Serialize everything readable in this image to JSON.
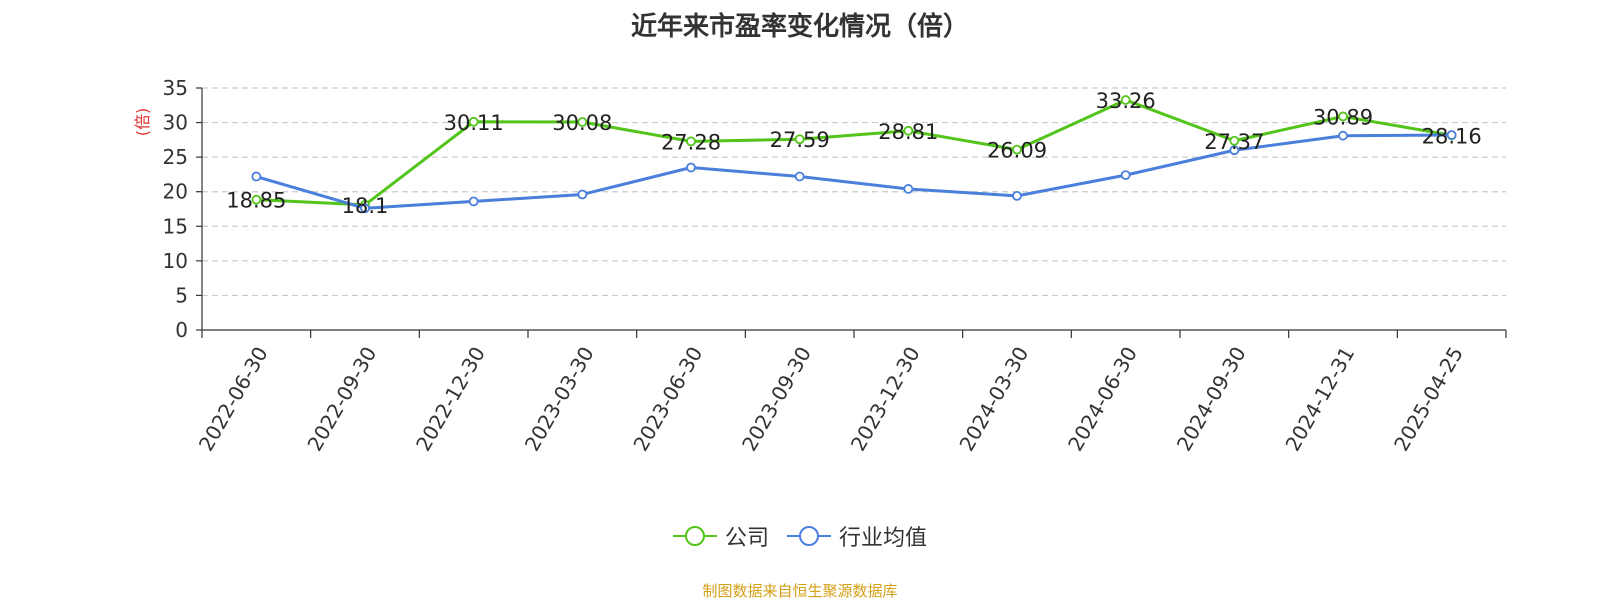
{
  "chart_data": {
    "type": "line",
    "title": "近年来市盈率变化情况（倍）",
    "ylabel": "(倍)",
    "ylim": [
      0,
      35
    ],
    "yticks": [
      0,
      5,
      10,
      15,
      20,
      25,
      30,
      35
    ],
    "grid": true,
    "legend_position": "bottom-center",
    "categories": [
      "2022-06-30",
      "2022-09-30",
      "2022-12-30",
      "2023-03-30",
      "2023-06-30",
      "2023-09-30",
      "2023-12-30",
      "2024-03-30",
      "2024-06-30",
      "2024-09-30",
      "2024-12-31",
      "2025-04-25"
    ],
    "series": [
      {
        "name": "公司",
        "color": "#52c41a",
        "values": [
          18.85,
          18.1,
          30.11,
          30.08,
          27.28,
          27.59,
          28.81,
          26.09,
          33.26,
          27.37,
          30.89,
          28.16
        ],
        "labels": [
          "18.85",
          "18.1",
          "30.11",
          "30.08",
          "27.28",
          "27.59",
          "28.81",
          "26.09",
          "33.26",
          "27.37",
          "30.89",
          "28.16"
        ]
      },
      {
        "name": "行业均值",
        "color": "#4a7fdc",
        "values": [
          22.2,
          17.6,
          18.6,
          19.6,
          23.5,
          22.2,
          20.4,
          19.4,
          22.4,
          26.0,
          28.1,
          28.2
        ]
      }
    ]
  },
  "footer": {
    "source": "制图数据来自恒生聚源数据库",
    "source_color": "#d4a017"
  },
  "ylabel_color": "#e03030"
}
